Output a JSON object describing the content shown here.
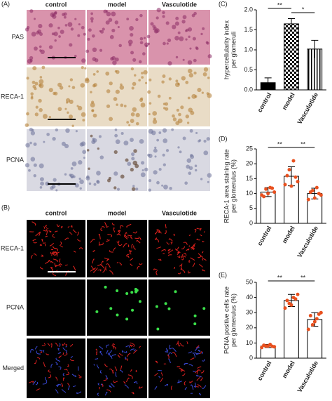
{
  "figure": {
    "panel_a": "(A)",
    "panel_b": "(B)",
    "columns_a": [
      "control",
      "model",
      "Vasculotide"
    ],
    "rows_a": [
      "PAS",
      "RECA-1",
      "PCNA"
    ],
    "columns_b": [
      "control",
      "model",
      "Vasculotide"
    ],
    "rows_b": [
      "RECA-1",
      "PCNA",
      "Merged"
    ]
  },
  "chart_data": [
    {
      "type": "bar",
      "panel": "(C)",
      "ylabel": [
        "hypercellularity index",
        "per glomeruli"
      ],
      "categories": [
        "control",
        "model",
        "Vasculotide"
      ],
      "values": [
        0.18,
        1.65,
        1.02
      ],
      "errors": [
        0.12,
        0.13,
        0.22
      ],
      "fills": [
        "solid",
        "checker",
        "stripes"
      ],
      "color": "#000000",
      "ylim": [
        0,
        2
      ],
      "yticks": [
        {
          "value": 0,
          "label": "0.0"
        },
        {
          "value": 0.5,
          "label": "0.5"
        },
        {
          "value": 1,
          "label": "1.0"
        },
        {
          "value": 1.5,
          "label": "1.5"
        },
        {
          "value": 2,
          "label": "2.0"
        }
      ],
      "annotations": [
        {
          "text": "**",
          "from": 0,
          "to": 1
        },
        {
          "text": "*",
          "from": 1,
          "to": 2
        }
      ]
    },
    {
      "type": "bar",
      "panel": "(D)",
      "ylabel": [
        "RECA-1 area staining rate",
        "per glomerulus (%)"
      ],
      "categories": [
        "control",
        "model",
        "Vasculotide"
      ],
      "values": [
        10.5,
        15.8,
        10.0
      ],
      "errors": [
        1.5,
        3.2,
        1.8
      ],
      "points": [
        [
          9.5,
          11.5,
          12,
          10.5,
          9,
          10,
          11.8
        ],
        [
          13,
          18,
          21,
          14,
          16,
          12.5,
          15.5
        ],
        [
          8,
          11,
          12,
          9.5,
          10.5,
          8.5,
          10
        ]
      ],
      "fills": [
        "none",
        "none",
        "none"
      ],
      "color": "#e8501e",
      "ylim": [
        0,
        25
      ],
      "yticks": [
        0,
        5,
        10,
        15,
        20,
        25
      ],
      "annotations": [
        {
          "text": "**",
          "from": 0,
          "to": 1
        },
        {
          "text": "**",
          "from": 1,
          "to": 2
        }
      ]
    },
    {
      "type": "bar",
      "panel": "(E)",
      "ylabel": [
        "PCNA positive cells rate",
        "per glomerulus (%)"
      ],
      "categories": [
        "control",
        "model",
        "Vasculotide"
      ],
      "values": [
        8,
        38,
        25.5
      ],
      "errors": [
        1,
        4,
        4.5
      ],
      "points": [
        [
          7,
          8,
          9,
          7.5,
          8.5,
          8,
          7.8
        ],
        [
          33,
          36,
          40,
          42,
          38,
          35,
          39
        ],
        [
          19,
          22,
          26,
          30,
          28,
          24,
          29
        ]
      ],
      "fills": [
        "none",
        "none",
        "none"
      ],
      "color": "#e8501e",
      "ylim": [
        0,
        50
      ],
      "yticks": [
        0,
        10,
        20,
        30,
        40,
        50
      ],
      "annotations": [
        {
          "text": "**",
          "from": 0,
          "to": 1
        },
        {
          "text": "**",
          "from": 1,
          "to": 2
        }
      ]
    }
  ]
}
